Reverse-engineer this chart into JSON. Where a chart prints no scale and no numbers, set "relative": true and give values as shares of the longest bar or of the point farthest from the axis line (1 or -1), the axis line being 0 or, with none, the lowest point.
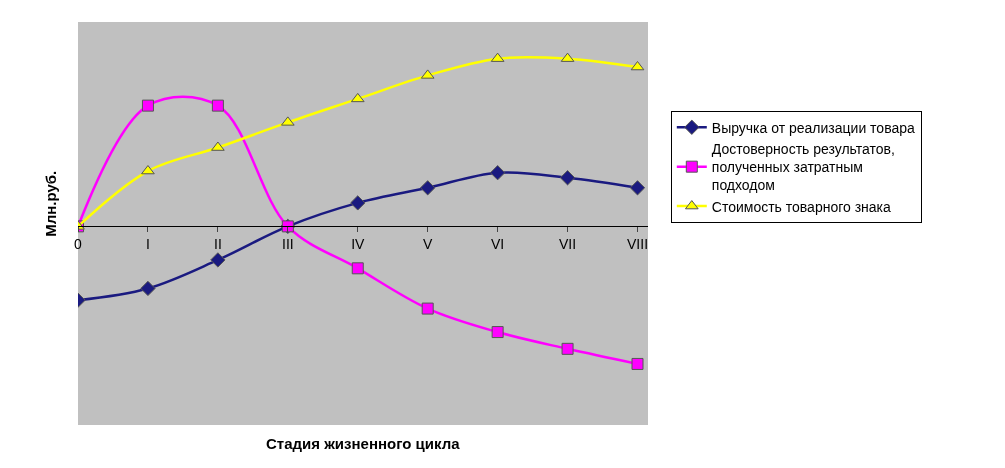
{
  "chart_data": {
    "type": "line",
    "relative": true,
    "xlabel": "Стадия жизненного цикла",
    "ylabel": "Млн.руб.",
    "categories": [
      "0",
      "I",
      "II",
      "III",
      "IV",
      "V",
      "VI",
      "VII",
      "VIII"
    ],
    "series": [
      {
        "name": "Выручка от реализации товара",
        "color": "#1a1a80",
        "marker": "diamond",
        "values": [
          -0.44,
          -0.37,
          -0.2,
          0,
          0.14,
          0.23,
          0.32,
          0.29,
          0.23
        ]
      },
      {
        "name": "Достоверность результатов, полученных затратным подходом",
        "color": "#ff00ff",
        "marker": "square",
        "values": [
          0,
          0.72,
          0.72,
          0,
          -0.25,
          -0.49,
          -0.63,
          -0.73,
          -0.82
        ]
      },
      {
        "name": "Стоимость товарного знака",
        "color": "#ffff00",
        "marker": "triangle",
        "values": [
          0,
          0.33,
          0.47,
          0.62,
          0.76,
          0.9,
          1,
          1,
          0.95
        ]
      }
    ],
    "legend": "right",
    "grid": false
  }
}
